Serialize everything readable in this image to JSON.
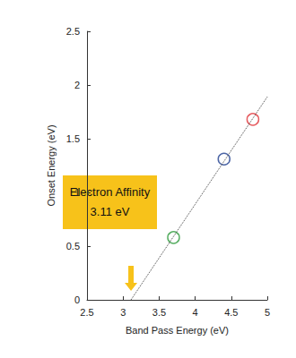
{
  "chart_data": {
    "type": "scatter",
    "xlabel": "Band Pass Energy (eV)",
    "ylabel": "Onset Energy (eV)",
    "xlim": [
      2.5,
      5
    ],
    "xticks": [
      2.5,
      3,
      3.5,
      4,
      4.5,
      5
    ],
    "ylim": [
      0,
      2.5
    ],
    "yticks": [
      0,
      0.5,
      1,
      1.5,
      2,
      2.5
    ],
    "grid": false,
    "series": [
      {
        "type": "scatter",
        "x": [
          3.7,
          4.4,
          4.8
        ],
        "values": [
          0.58,
          1.31,
          1.68
        ],
        "colors": [
          "#2e9a3c",
          "#1f3f8f",
          "#e0353a"
        ],
        "marker": "open_circle"
      },
      {
        "type": "line",
        "x": [
          3.11,
          5
        ],
        "values": [
          0,
          1.89
        ],
        "color": "#444444",
        "line_style": "dotted"
      }
    ],
    "annotation": {
      "text": [
        "Electron Affinity",
        "3.11 eV"
      ],
      "color": "#f7c21a"
    }
  }
}
